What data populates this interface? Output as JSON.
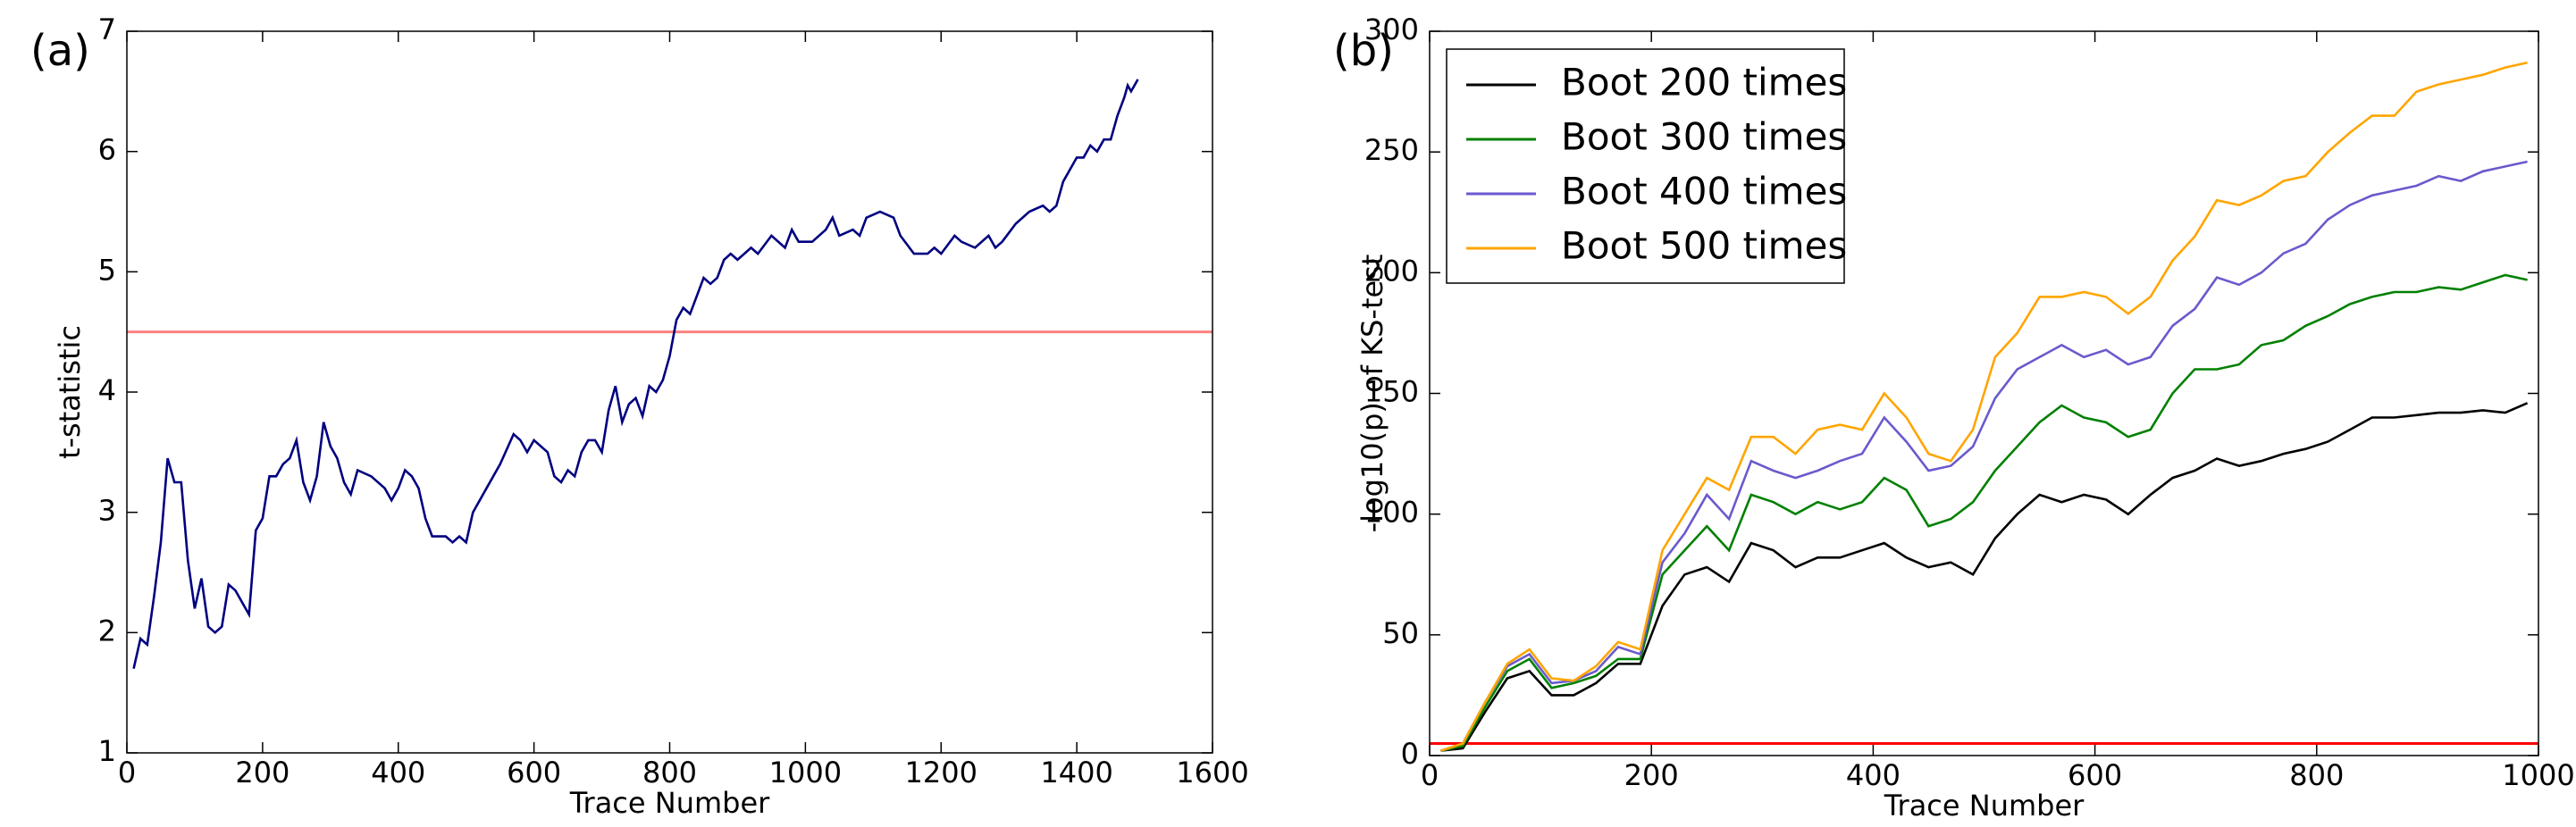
{
  "chart_data": [
    {
      "type": "line",
      "label": "(a)",
      "xlabel": "Trace Number",
      "ylabel": "t-statistic",
      "xlim": [
        0,
        1600
      ],
      "xticks": [
        0,
        200,
        400,
        600,
        800,
        1000,
        1200,
        1400,
        1600
      ],
      "ylim": [
        1,
        7
      ],
      "yticks": [
        1,
        2,
        3,
        4,
        5,
        6,
        7
      ],
      "hline": {
        "value": 4.5,
        "color": "#ff8080"
      },
      "x": [
        10,
        20,
        30,
        40,
        50,
        60,
        70,
        80,
        90,
        100,
        110,
        120,
        130,
        140,
        150,
        160,
        170,
        180,
        190,
        200,
        210,
        220,
        230,
        240,
        250,
        260,
        270,
        280,
        290,
        300,
        310,
        320,
        330,
        340,
        360,
        380,
        390,
        400,
        410,
        420,
        430,
        440,
        450,
        470,
        480,
        490,
        500,
        510,
        530,
        550,
        570,
        580,
        590,
        600,
        610,
        620,
        630,
        640,
        650,
        660,
        670,
        680,
        690,
        700,
        710,
        720,
        730,
        740,
        750,
        760,
        770,
        780,
        790,
        800,
        810,
        820,
        830,
        840,
        850,
        860,
        870,
        880,
        890,
        900,
        920,
        930,
        950,
        970,
        980,
        990,
        1010,
        1030,
        1040,
        1050,
        1070,
        1080,
        1090,
        1110,
        1130,
        1140,
        1160,
        1180,
        1190,
        1200,
        1220,
        1230,
        1250,
        1270,
        1280,
        1290,
        1310,
        1330,
        1350,
        1360,
        1370,
        1380,
        1400,
        1410,
        1420,
        1430,
        1440,
        1450,
        1460,
        1470,
        1475,
        1480,
        1490
      ],
      "series": [
        {
          "color": "#000080",
          "values": [
            1.7,
            1.95,
            1.9,
            2.3,
            2.75,
            3.45,
            3.25,
            3.25,
            2.6,
            2.2,
            2.45,
            2.05,
            2.0,
            2.05,
            2.4,
            2.35,
            2.25,
            2.15,
            2.85,
            2.95,
            3.3,
            3.3,
            3.4,
            3.45,
            3.6,
            3.25,
            3.1,
            3.3,
            3.75,
            3.55,
            3.45,
            3.25,
            3.15,
            3.35,
            3.3,
            3.2,
            3.1,
            3.2,
            3.35,
            3.3,
            3.2,
            2.95,
            2.8,
            2.8,
            2.75,
            2.8,
            2.75,
            3.0,
            3.2,
            3.4,
            3.65,
            3.6,
            3.5,
            3.6,
            3.55,
            3.5,
            3.3,
            3.25,
            3.35,
            3.3,
            3.5,
            3.6,
            3.6,
            3.5,
            3.85,
            4.05,
            3.75,
            3.9,
            3.95,
            3.8,
            4.05,
            4.0,
            4.1,
            4.3,
            4.6,
            4.7,
            4.65,
            4.8,
            4.95,
            4.9,
            4.95,
            5.1,
            5.15,
            5.1,
            5.2,
            5.15,
            5.3,
            5.2,
            5.35,
            5.25,
            5.25,
            5.35,
            5.45,
            5.3,
            5.35,
            5.3,
            5.45,
            5.5,
            5.45,
            5.3,
            5.15,
            5.15,
            5.2,
            5.15,
            5.3,
            5.25,
            5.2,
            5.3,
            5.2,
            5.25,
            5.4,
            5.5,
            5.55,
            5.5,
            5.55,
            5.75,
            5.95,
            5.95,
            6.05,
            6.0,
            6.1,
            6.1,
            6.3,
            6.45,
            6.55,
            6.5,
            6.6
          ]
        }
      ]
    },
    {
      "type": "line",
      "label": "(b)",
      "xlabel": "Trace Number",
      "ylabel": "-log10(p) of KS-test",
      "xlim": [
        0,
        1000
      ],
      "xticks": [
        0,
        200,
        400,
        600,
        800,
        1000
      ],
      "ylim": [
        0,
        300
      ],
      "yticks": [
        0,
        50,
        100,
        150,
        200,
        250,
        300
      ],
      "hline": {
        "value": 5,
        "color": "#ff0000"
      },
      "legend": "upper left",
      "x": [
        10,
        30,
        50,
        70,
        90,
        110,
        130,
        150,
        170,
        190,
        210,
        230,
        250,
        270,
        290,
        310,
        330,
        350,
        370,
        390,
        410,
        430,
        450,
        470,
        490,
        510,
        530,
        550,
        570,
        590,
        610,
        630,
        650,
        670,
        690,
        710,
        730,
        750,
        770,
        790,
        810,
        830,
        850,
        870,
        890,
        910,
        930,
        950,
        970,
        990
      ],
      "series": [
        {
          "name": "Boot 200 times",
          "color": "#000000",
          "values": [
            2,
            3,
            18,
            32,
            35,
            25,
            25,
            30,
            38,
            38,
            62,
            75,
            78,
            72,
            88,
            85,
            78,
            82,
            82,
            85,
            88,
            82,
            78,
            80,
            75,
            90,
            100,
            108,
            105,
            108,
            106,
            100,
            108,
            115,
            118,
            123,
            120,
            122,
            125,
            127,
            130,
            135,
            140,
            140,
            141,
            142,
            142,
            143,
            142,
            146
          ]
        },
        {
          "name": "Boot 300 times",
          "color": "#008000",
          "values": [
            2,
            4,
            20,
            35,
            40,
            28,
            30,
            33,
            40,
            40,
            75,
            85,
            95,
            85,
            108,
            105,
            100,
            105,
            102,
            105,
            115,
            110,
            95,
            98,
            105,
            118,
            128,
            138,
            145,
            140,
            138,
            132,
            135,
            150,
            160,
            160,
            162,
            170,
            172,
            178,
            182,
            187,
            190,
            192,
            192,
            194,
            193,
            196,
            199,
            197
          ]
        },
        {
          "name": "Boot 400 times",
          "color": "#6a5acd",
          "values": [
            2,
            5,
            22,
            37,
            42,
            30,
            31,
            35,
            45,
            42,
            80,
            92,
            108,
            98,
            122,
            118,
            115,
            118,
            122,
            125,
            140,
            130,
            118,
            120,
            128,
            148,
            160,
            165,
            170,
            165,
            168,
            162,
            165,
            178,
            185,
            198,
            195,
            200,
            208,
            212,
            222,
            228,
            232,
            234,
            236,
            240,
            238,
            242,
            244,
            246
          ]
        },
        {
          "name": "Boot 500 times",
          "color": "#ffa500",
          "values": [
            2,
            5,
            22,
            38,
            44,
            32,
            31,
            37,
            47,
            44,
            85,
            100,
            115,
            110,
            132,
            132,
            125,
            135,
            137,
            135,
            150,
            140,
            125,
            122,
            135,
            165,
            175,
            190,
            190,
            192,
            190,
            183,
            190,
            205,
            215,
            230,
            228,
            232,
            238,
            240,
            250,
            258,
            265,
            265,
            275,
            278,
            280,
            282,
            285,
            287
          ]
        }
      ]
    }
  ]
}
